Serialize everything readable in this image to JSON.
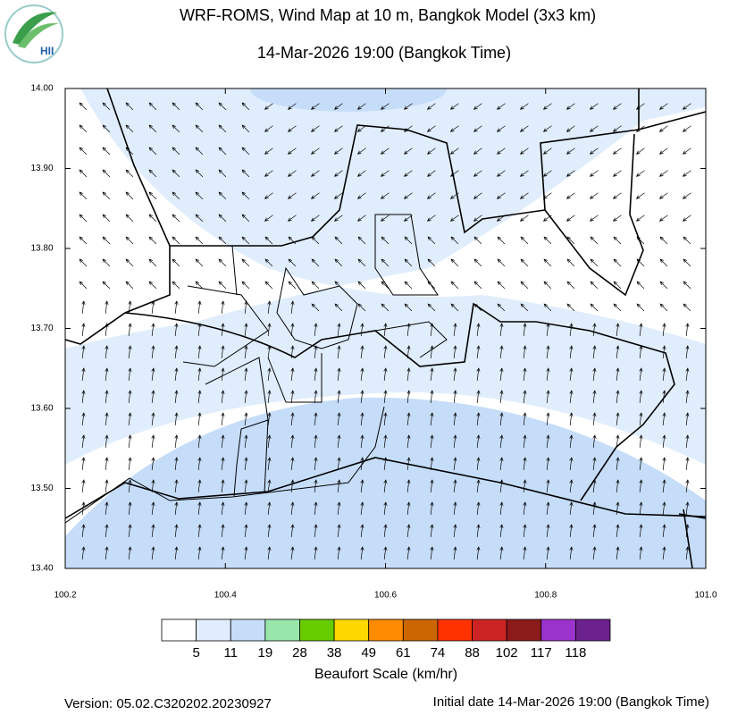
{
  "header": {
    "title": "WRF-ROMS, Wind Map at 10 m, Bangkok Model (3x3 km)",
    "subtitle": "14-Mar-2026 19:00 (Bangkok Time)",
    "logo": "HII"
  },
  "map": {
    "lat_ticks": [
      "14.00",
      "13.90",
      "13.80",
      "13.70",
      "13.60",
      "13.50",
      "13.40"
    ],
    "lon_ticks": [
      "100.2",
      "100.4",
      "100.6",
      "100.8",
      "101.0"
    ]
  },
  "legend": {
    "title": "Beaufort Scale (km/hr)",
    "labels": [
      "5",
      "11",
      "19",
      "28",
      "38",
      "49",
      "61",
      "74",
      "88",
      "102",
      "117",
      "118"
    ],
    "colors": [
      "#ffffff",
      "#e0edfc",
      "#c6ddf9",
      "#98e6aa",
      "#66cc00",
      "#ffd800",
      "#ff8c00",
      "#cc6600",
      "#ff3300",
      "#cc2424",
      "#8b1a1a",
      "#9933cc",
      "#6b218e"
    ]
  },
  "footer": {
    "version": "Version: 05.02.C320202.20230927",
    "initial_date": "Initial date 14-Mar-2026 19:00 (Bangkok Time)"
  }
}
